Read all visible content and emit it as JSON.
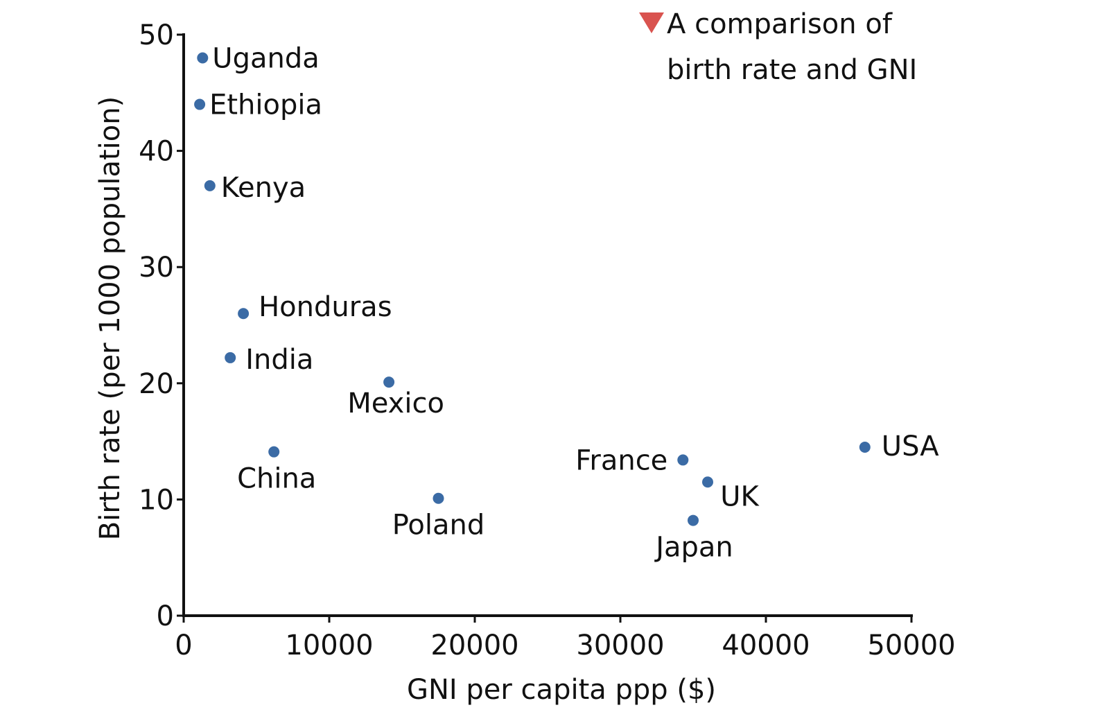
{
  "chart_data": {
    "type": "scatter",
    "title": "",
    "xlabel": "GNI per capita ppp ($)",
    "ylabel": "Birth rate (per 1000 population)",
    "xlim": [
      0,
      50000
    ],
    "ylim": [
      0,
      50
    ],
    "xticks": [
      0,
      10000,
      20000,
      30000,
      40000,
      50000
    ],
    "yticks": [
      0,
      10,
      20,
      30,
      40,
      50
    ],
    "grid": false,
    "point_color": "#3b6ba5",
    "legend": {
      "placement": "top-right",
      "marker": "triangle-down",
      "marker_color": "#d9534f",
      "lines": [
        "A comparison of",
        "birth rate and GNI"
      ]
    },
    "points": [
      {
        "label": "Uganda",
        "x": 1300,
        "y": 48
      },
      {
        "label": "Ethiopia",
        "x": 1100,
        "y": 44
      },
      {
        "label": "Kenya",
        "x": 1800,
        "y": 37
      },
      {
        "label": "Honduras",
        "x": 4100,
        "y": 26
      },
      {
        "label": "India",
        "x": 3200,
        "y": 22.2
      },
      {
        "label": "Mexico",
        "x": 14100,
        "y": 20.1
      },
      {
        "label": "China",
        "x": 6200,
        "y": 14.1
      },
      {
        "label": "Poland",
        "x": 17500,
        "y": 10.1
      },
      {
        "label": "France",
        "x": 34300,
        "y": 13.4
      },
      {
        "label": "UK",
        "x": 36000,
        "y": 11.5
      },
      {
        "label": "Japan",
        "x": 35000,
        "y": 8.2
      },
      {
        "label": "USA",
        "x": 46800,
        "y": 14.5
      }
    ]
  }
}
